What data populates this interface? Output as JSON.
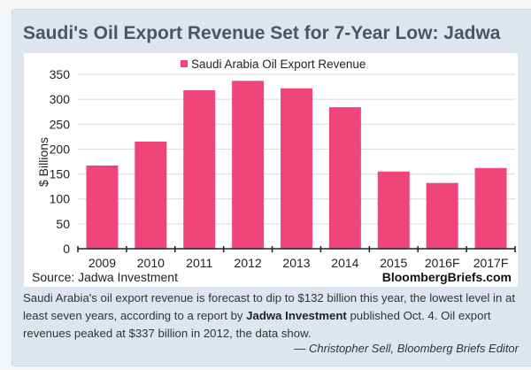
{
  "title": "Saudi's Oil Export Revenue Set for 7-Year Low: Jadwa",
  "source": "Source: Jadwa Investment",
  "brand": "BloombergBriefs.com",
  "caption": {
    "part1": "Saudi Arabia's oil export revenue is forecast to dip to $132 billion this year, the lowest level in at least seven years, according to a report by ",
    "bold": "Jadwa Investment",
    "part2": " published Oct. 4. Oil export revenues peaked at $337 billion in 2012, the data show."
  },
  "byline": "— Christopher Sell, Bloomberg Briefs Editor",
  "chart_data": {
    "type": "bar",
    "title": "Saudi's Oil Export Revenue Set for 7-Year Low: Jadwa",
    "xlabel": "",
    "ylabel": "$ Billions",
    "ylim": [
      0,
      350
    ],
    "yticks": [
      0,
      50,
      100,
      150,
      200,
      250,
      300,
      350
    ],
    "grid": true,
    "legend_position": "top-center",
    "categories": [
      "2009",
      "2010",
      "2011",
      "2012",
      "2013",
      "2014",
      "2015",
      "2016F",
      "2017F"
    ],
    "series": [
      {
        "name": "Saudi Arabia Oil Export Revenue",
        "color": "#f0457a",
        "values": [
          167,
          215,
          318,
          337,
          322,
          284,
          155,
          132,
          162
        ]
      }
    ]
  }
}
